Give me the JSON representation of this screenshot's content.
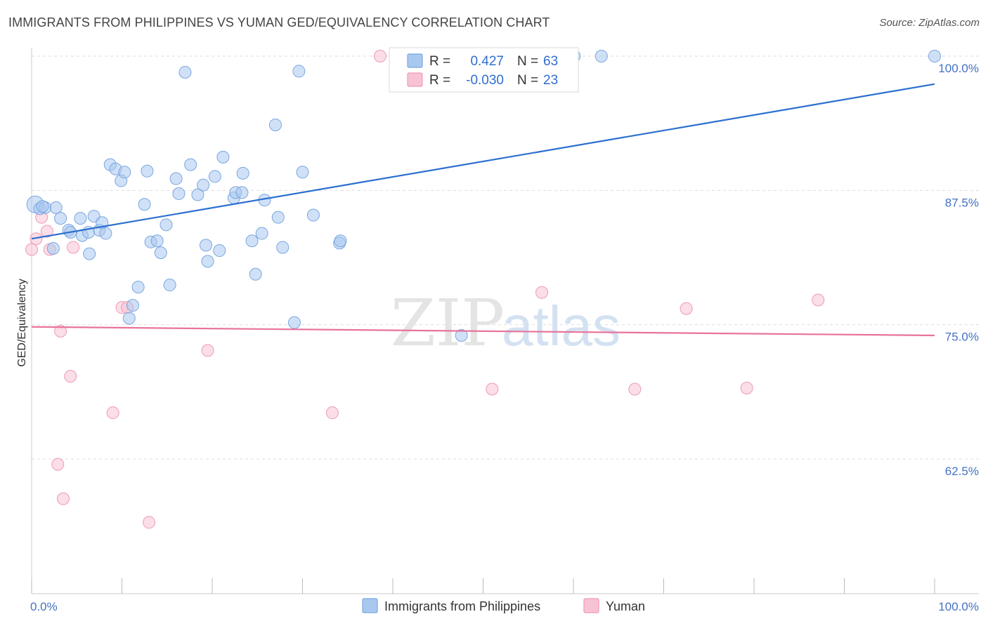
{
  "title": "IMMIGRANTS FROM PHILIPPINES VS YUMAN GED/EQUIVALENCY CORRELATION CHART",
  "source": "Source: ZipAtlas.com",
  "watermark": {
    "zip": "ZIP",
    "atlas": "atlas"
  },
  "colors": {
    "blue_fill": "#a9c8f0",
    "blue_stroke": "#7aa6e0",
    "blue_line": "#2b6fcf",
    "pink_fill": "#f7c3d3",
    "pink_stroke": "#ee9bb5",
    "pink_line": "#e8739a",
    "grid": "#dddddd",
    "tick_label": "#4472c4"
  },
  "legend": {
    "row1": {
      "r_label": "R =",
      "r_value": "0.427",
      "n_label": "N =",
      "n_value": "63"
    },
    "row2": {
      "r_label": "R =",
      "r_value": "-0.030",
      "n_label": "N =",
      "n_value": "23"
    }
  },
  "bottom_legend": {
    "series1": "Immigrants from Philippines",
    "series2": "Yuman"
  },
  "chart_data": {
    "type": "scatter",
    "title": "IMMIGRANTS FROM PHILIPPINES VS YUMAN GED/EQUIVALENCY CORRELATION CHART",
    "xlabel": "",
    "ylabel": "GED/Equivalency",
    "xlim": [
      0,
      100
    ],
    "ylim": [
      50,
      101
    ],
    "x_tick_labels": [
      "0.0%",
      "100.0%"
    ],
    "y_ticks": [
      {
        "value": 100,
        "label": "100.0%"
      },
      {
        "value": 87.5,
        "label": "87.5%"
      },
      {
        "value": 75,
        "label": "75.0%"
      },
      {
        "value": 62.5,
        "label": "62.5%"
      }
    ],
    "legend_position": "top-center",
    "series": [
      {
        "name": "Immigrants from Philippines",
        "color": "#a9c8f0",
        "r": 0.427,
        "n": 63,
        "trend": {
          "x0": 0,
          "y0": 83.0,
          "x1": 100,
          "y1": 97.4
        },
        "points": [
          [
            0.4,
            86.2
          ],
          [
            0.9,
            85.8
          ],
          [
            1.5,
            85.9
          ],
          [
            2.7,
            85.9
          ],
          [
            1.2,
            86.0
          ],
          [
            2.4,
            82.1
          ],
          [
            3.2,
            84.9
          ],
          [
            4.1,
            83.8
          ],
          [
            4.3,
            83.6
          ],
          [
            5.4,
            84.9
          ],
          [
            5.6,
            83.3
          ],
          [
            6.3,
            83.6
          ],
          [
            6.4,
            81.6
          ],
          [
            6.9,
            85.1
          ],
          [
            7.5,
            83.8
          ],
          [
            7.8,
            84.5
          ],
          [
            8.2,
            83.5
          ],
          [
            8.7,
            89.9
          ],
          [
            9.3,
            89.5
          ],
          [
            9.9,
            88.4
          ],
          [
            10.3,
            89.2
          ],
          [
            10.8,
            75.6
          ],
          [
            11.2,
            76.8
          ],
          [
            11.8,
            78.5
          ],
          [
            12.5,
            86.2
          ],
          [
            12.8,
            89.3
          ],
          [
            13.2,
            82.7
          ],
          [
            13.9,
            82.8
          ],
          [
            14.3,
            81.7
          ],
          [
            14.9,
            84.3
          ],
          [
            15.3,
            78.7
          ],
          [
            16.0,
            88.6
          ],
          [
            16.3,
            87.2
          ],
          [
            17.0,
            98.5
          ],
          [
            17.6,
            89.9
          ],
          [
            18.4,
            87.1
          ],
          [
            19.0,
            88.0
          ],
          [
            19.3,
            82.4
          ],
          [
            19.5,
            80.9
          ],
          [
            20.3,
            88.8
          ],
          [
            20.8,
            81.9
          ],
          [
            21.2,
            90.6
          ],
          [
            22.4,
            86.8
          ],
          [
            22.6,
            87.3
          ],
          [
            23.3,
            87.3
          ],
          [
            23.4,
            89.1
          ],
          [
            24.4,
            82.8
          ],
          [
            24.8,
            79.7
          ],
          [
            25.5,
            83.5
          ],
          [
            25.8,
            86.6
          ],
          [
            27.0,
            93.6
          ],
          [
            27.3,
            85.0
          ],
          [
            27.8,
            82.2
          ],
          [
            29.1,
            75.2
          ],
          [
            29.6,
            98.6
          ],
          [
            30.0,
            89.2
          ],
          [
            31.2,
            85.2
          ],
          [
            34.1,
            82.6
          ],
          [
            34.2,
            82.8
          ],
          [
            47.6,
            74.0
          ],
          [
            60.1,
            100.0
          ],
          [
            63.1,
            100.0
          ],
          [
            100.0,
            100.0
          ]
        ]
      },
      {
        "name": "Yuman",
        "color": "#f7c3d3",
        "r": -0.03,
        "n": 23,
        "trend": {
          "x0": 0,
          "y0": 74.8,
          "x1": 100,
          "y1": 74.0
        },
        "points": [
          [
            0.0,
            82.0
          ],
          [
            0.5,
            83.0
          ],
          [
            1.1,
            85.0
          ],
          [
            1.7,
            83.7
          ],
          [
            2.0,
            82.0
          ],
          [
            2.9,
            62.0
          ],
          [
            3.2,
            74.4
          ],
          [
            3.5,
            58.8
          ],
          [
            4.3,
            70.2
          ],
          [
            4.6,
            82.2
          ],
          [
            9.0,
            66.8
          ],
          [
            10.0,
            76.6
          ],
          [
            10.6,
            76.6
          ],
          [
            13.0,
            56.6
          ],
          [
            19.5,
            72.6
          ],
          [
            33.3,
            66.8
          ],
          [
            38.6,
            100.0
          ],
          [
            51.0,
            69.0
          ],
          [
            56.5,
            78.0
          ],
          [
            66.8,
            69.0
          ],
          [
            72.5,
            76.5
          ],
          [
            79.2,
            69.1
          ],
          [
            87.1,
            77.3
          ]
        ]
      }
    ]
  }
}
